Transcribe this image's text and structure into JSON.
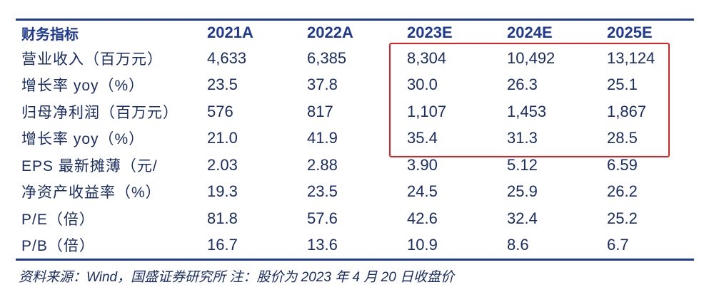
{
  "table": {
    "header": {
      "label": "财务指标",
      "years": [
        "2021A",
        "2022A",
        "2023E",
        "2024E",
        "2025E"
      ]
    },
    "rows": [
      {
        "label": "营业收入（百万元）",
        "values": [
          "4,633",
          "6,385",
          "8,304",
          "10,492",
          "13,124"
        ]
      },
      {
        "label": "增长率 yoy（%）",
        "values": [
          "23.5",
          "37.8",
          "30.0",
          "26.3",
          "25.1"
        ]
      },
      {
        "label": "归母净利润（百万元）",
        "values": [
          "576",
          "817",
          "1,107",
          "1,453",
          "1,867"
        ]
      },
      {
        "label": "增长率 yoy（%）",
        "values": [
          "21.0",
          "41.9",
          "35.4",
          "31.3",
          "28.5"
        ]
      },
      {
        "label": "EPS 最新摊薄（元/",
        "values": [
          "2.03",
          "2.88",
          "3.90",
          "5.12",
          "6.59"
        ]
      },
      {
        "label": "净资产收益率（%）",
        "values": [
          "19.3",
          "23.5",
          "24.5",
          "25.9",
          "26.2"
        ]
      },
      {
        "label": "P/E（倍）",
        "values": [
          "81.8",
          "57.6",
          "42.6",
          "32.4",
          "25.2"
        ]
      },
      {
        "label": "P/B（倍）",
        "values": [
          "16.7",
          "13.6",
          "10.9",
          "8.6",
          "6.7"
        ]
      }
    ]
  },
  "note": "资料来源：Wind，国盛证券研究所 注：股价为 2023 年 4 月 20 日收盘价",
  "colors": {
    "text": "#1a2d63",
    "header": "#1f3a93",
    "rule": "#1f3a93",
    "highlight": "#e02020"
  }
}
